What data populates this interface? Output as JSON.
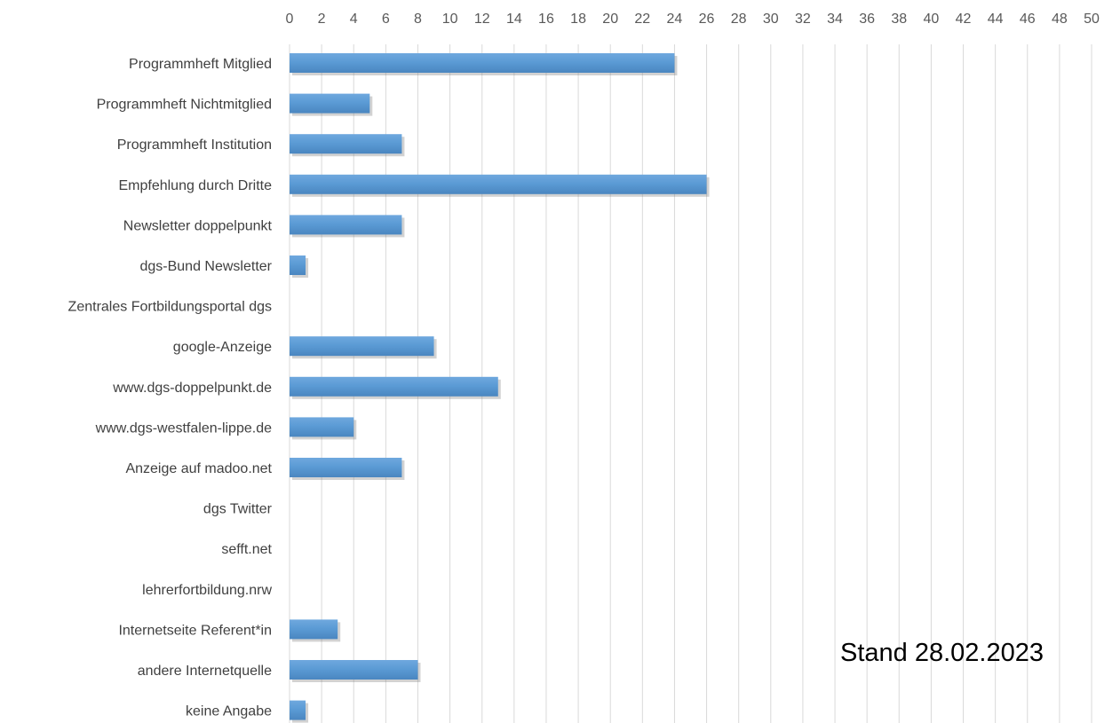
{
  "chart_data": {
    "type": "bar",
    "orientation": "horizontal",
    "categories": [
      "Programmheft Mitglied",
      "Programmheft Nichtmitglied",
      "Programmheft Institution",
      "Empfehlung durch Dritte",
      "Newsletter doppelpunkt",
      "dgs-Bund Newsletter",
      "Zentrales Fortbildungsportal dgs",
      "google-Anzeige",
      "www.dgs-doppelpunkt.de",
      "www.dgs-westfalen-lippe.de",
      "Anzeige auf madoo.net",
      "dgs Twitter",
      "sefft.net",
      "lehrerfortbildung.nrw",
      "Internetseite Referent*in",
      "andere Internetquelle",
      "keine Angabe"
    ],
    "values": [
      24,
      5,
      7,
      26,
      7,
      1,
      0,
      9,
      13,
      4,
      7,
      0,
      0,
      0,
      3,
      8,
      1
    ],
    "xlim": [
      0,
      50
    ],
    "xticks": [
      0,
      2,
      4,
      6,
      8,
      10,
      12,
      14,
      16,
      18,
      20,
      22,
      24,
      26,
      28,
      30,
      32,
      34,
      36,
      38,
      40,
      42,
      44,
      46,
      48,
      50
    ],
    "axis_position": "top",
    "grid": true,
    "bar_color": "#5b9bd5",
    "title": "",
    "xlabel": "",
    "ylabel": ""
  },
  "annotation": {
    "stand_text": "Stand 28.02.2023"
  }
}
